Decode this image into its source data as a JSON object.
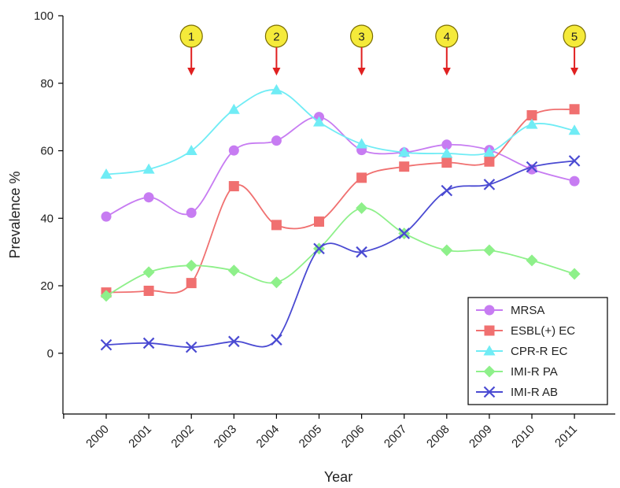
{
  "chart_data": {
    "type": "line",
    "title": "",
    "xlabel": "Year",
    "ylabel": "Prevalence %",
    "x": [
      "2000",
      "2001",
      "2002",
      "2003",
      "2004",
      "2005",
      "2006",
      "2007",
      "2008",
      "2009",
      "2010",
      "2011"
    ],
    "ylim": [
      -18,
      100
    ],
    "yticks": [
      0,
      20,
      40,
      60,
      80,
      100
    ],
    "grid": false,
    "legend_position": "bottom-right",
    "series": [
      {
        "name": "MRSA",
        "marker": "circle",
        "color": "#c77cf2",
        "values": [
          40.5,
          46.2,
          41.6,
          60.1,
          63.0,
          70.0,
          60.2,
          59.5,
          61.8,
          60.2,
          54.5,
          51.0
        ]
      },
      {
        "name": "ESBL(+) EC",
        "marker": "square",
        "color": "#f07070",
        "values": [
          18.0,
          18.5,
          20.8,
          49.5,
          38.0,
          39.0,
          52.0,
          55.3,
          56.5,
          56.8,
          70.5,
          72.3
        ]
      },
      {
        "name": "CPR-R EC",
        "marker": "triangle",
        "color": "#70ecf5",
        "values": [
          53.0,
          54.5,
          60.0,
          72.2,
          78.0,
          68.5,
          62.0,
          59.5,
          59.2,
          59.5,
          67.8,
          66.0
        ]
      },
      {
        "name": "IMI-R PA",
        "marker": "diamond",
        "color": "#8ef08a",
        "values": [
          17.0,
          24.0,
          26.0,
          24.5,
          21.0,
          31.0,
          43.0,
          35.5,
          30.5,
          30.5,
          27.5,
          23.5
        ]
      },
      {
        "name": "IMI-R AB",
        "marker": "x",
        "color": "#4a4ad2",
        "values": [
          2.5,
          3.0,
          1.8,
          3.5,
          4.0,
          31.0,
          30.0,
          35.5,
          48.2,
          50.0,
          55.2,
          57.0
        ]
      }
    ],
    "annotations": [
      {
        "label": "1",
        "x": "2002"
      },
      {
        "label": "2",
        "x": "2004"
      },
      {
        "label": "3",
        "x": "2006"
      },
      {
        "label": "4",
        "x": "2008"
      },
      {
        "label": "5",
        "x": "2011"
      }
    ]
  }
}
